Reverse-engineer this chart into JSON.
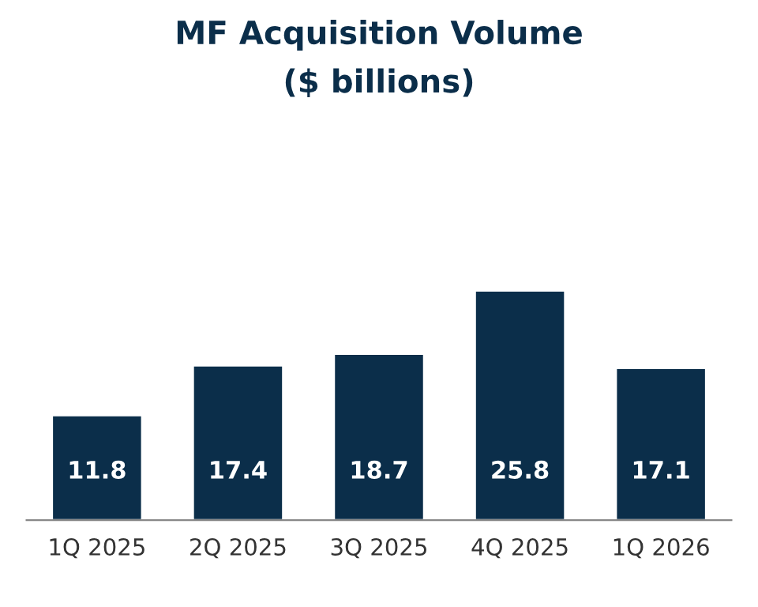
{
  "chart_data": {
    "type": "bar",
    "title": "MF Acquisition Volume",
    "subtitle": "($ billions)",
    "categories": [
      "1Q 2025",
      "2Q 2025",
      "3Q 2025",
      "4Q 2025",
      "1Q 2026"
    ],
    "values": [
      11.8,
      17.4,
      18.7,
      25.8,
      17.1
    ],
    "color": "#0b2e4a",
    "data_labels": true,
    "grid": false,
    "legend": false
  }
}
